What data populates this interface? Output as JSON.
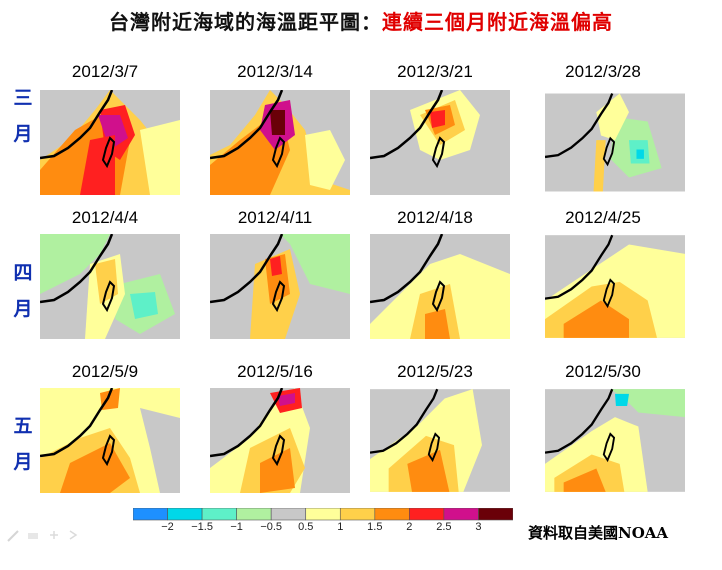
{
  "title_main": "台灣附近海域的海溫距平圖：",
  "title_highlight": "連續三個月附近海溫偏高",
  "months": [
    "三月",
    "四月",
    "五月"
  ],
  "dates": [
    [
      "2012/3/7",
      "2012/3/14",
      "2012/3/21",
      "2012/3/28"
    ],
    [
      "2012/4/4",
      "2012/4/11",
      "2012/4/18",
      "2012/4/25"
    ],
    [
      "2012/5/9",
      "2012/5/16",
      "2012/5/23",
      "2012/5/30"
    ]
  ],
  "colorbar": {
    "ticks": [
      "−2",
      "−1.5",
      "−1",
      "−0.5",
      "0.5",
      "1",
      "1.5",
      "2",
      "2.5",
      "3"
    ],
    "colors": [
      "#1e90ff",
      "#00d8e8",
      "#5ef0c8",
      "#b0f0a0",
      "#c8c8c8",
      "#ffff9a",
      "#ffd04a",
      "#ff8c10",
      "#ff2020",
      "#d0108c",
      "#6a0008"
    ]
  },
  "source": "資料取自美國NOAA"
}
